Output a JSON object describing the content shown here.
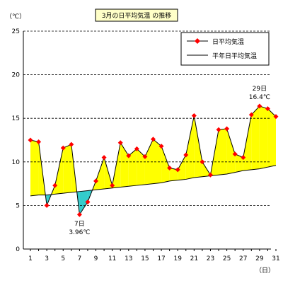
{
  "chart_data": {
    "type": "line",
    "title": "3月の日平均気温 の推移",
    "ylabel": "（℃）",
    "xlabel": "（日）",
    "ylim": [
      0,
      25
    ],
    "yticks": [
      "0",
      "5",
      "10",
      "15",
      "20",
      "25"
    ],
    "xlim": [
      1,
      31
    ],
    "xticks": [
      "1",
      "3",
      "5",
      "7",
      "9",
      "11",
      "13",
      "15",
      "17",
      "19",
      "21",
      "23",
      "25",
      "27",
      "29",
      "31"
    ],
    "grid": "horizontal dashed",
    "legend_position": "top-right",
    "fill_above_color": "#ffff00",
    "fill_below_color": "#33cccc",
    "series": [
      {
        "name": "日平均気温",
        "color": "#ff0000",
        "marker": "diamond",
        "x": [
          1,
          2,
          3,
          4,
          5,
          6,
          7,
          8,
          9,
          10,
          11,
          12,
          13,
          14,
          15,
          16,
          17,
          18,
          19,
          20,
          21,
          22,
          23,
          24,
          25,
          26,
          27,
          28,
          29,
          30,
          31
        ],
        "values": [
          12.5,
          12.3,
          5.0,
          7.3,
          11.6,
          12.0,
          3.96,
          5.4,
          7.8,
          10.5,
          7.3,
          12.2,
          10.7,
          11.5,
          10.6,
          12.6,
          11.8,
          9.3,
          9.1,
          10.8,
          15.3,
          10.0,
          8.5,
          13.7,
          13.8,
          10.9,
          10.5,
          15.4,
          16.4,
          16.1,
          15.2
        ]
      },
      {
        "name": "平年日平均気温",
        "color": "#000000",
        "x": [
          1,
          2,
          3,
          4,
          5,
          6,
          7,
          8,
          9,
          10,
          11,
          12,
          13,
          14,
          15,
          16,
          17,
          18,
          19,
          20,
          21,
          22,
          23,
          24,
          25,
          26,
          27,
          28,
          29,
          30,
          31
        ],
        "values": [
          6.1,
          6.2,
          6.2,
          6.3,
          6.4,
          6.5,
          6.6,
          6.7,
          6.8,
          6.9,
          7.0,
          7.1,
          7.2,
          7.3,
          7.4,
          7.5,
          7.6,
          7.8,
          7.9,
          8.0,
          8.2,
          8.3,
          8.4,
          8.5,
          8.6,
          8.8,
          9.0,
          9.1,
          9.2,
          9.4,
          9.6
        ]
      }
    ],
    "annotations": [
      {
        "x": 7,
        "lines": [
          "7日",
          "3.96℃"
        ]
      },
      {
        "x": 29,
        "lines": [
          "29日",
          "16.4℃"
        ]
      }
    ]
  }
}
